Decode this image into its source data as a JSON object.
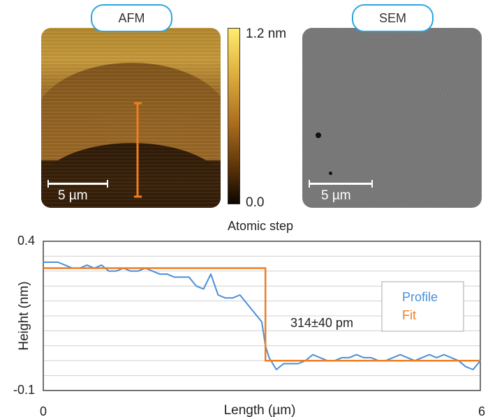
{
  "images": {
    "afm": {
      "label": "AFM",
      "scale_label": "5 µm"
    },
    "sem": {
      "label": "SEM",
      "scale_label": "5 µm"
    }
  },
  "colorbar": {
    "max_label": "1.2 nm",
    "min_label": "0.0"
  },
  "colors": {
    "profile": "#4a8fd8",
    "fit": "#ef7d22",
    "pill_border": "#2ba6de",
    "afm_line": "#ef7d22"
  },
  "chart_data": {
    "type": "line",
    "title": "Atomic step",
    "xlabel": "Length (µm)",
    "ylabel": "Height (nm)",
    "xlim": [
      0,
      6
    ],
    "ylim": [
      -0.1,
      0.4
    ],
    "x_tick_labels": [
      "0",
      "6"
    ],
    "y_tick_labels": [
      "0.4",
      "-0.1"
    ],
    "grid": true,
    "legend_position": "right",
    "annotation": "314±40 pm",
    "series": [
      {
        "name": "Profile",
        "x": [
          0,
          0.1,
          0.2,
          0.3,
          0.4,
          0.5,
          0.6,
          0.7,
          0.8,
          0.9,
          1.0,
          1.1,
          1.2,
          1.3,
          1.4,
          1.5,
          1.6,
          1.7,
          1.8,
          1.9,
          2.0,
          2.1,
          2.2,
          2.3,
          2.4,
          2.5,
          2.6,
          2.7,
          2.8,
          2.9,
          3.0,
          3.05,
          3.1,
          3.2,
          3.3,
          3.4,
          3.5,
          3.6,
          3.7,
          3.8,
          3.9,
          4.0,
          4.1,
          4.2,
          4.3,
          4.4,
          4.5,
          4.6,
          4.7,
          4.8,
          4.9,
          5.0,
          5.1,
          5.2,
          5.3,
          5.4,
          5.5,
          5.6,
          5.7,
          5.8,
          5.9,
          6.0
        ],
        "y": [
          0.33,
          0.33,
          0.33,
          0.32,
          0.31,
          0.31,
          0.32,
          0.31,
          0.32,
          0.3,
          0.3,
          0.31,
          0.3,
          0.3,
          0.31,
          0.3,
          0.29,
          0.29,
          0.28,
          0.28,
          0.28,
          0.25,
          0.24,
          0.29,
          0.22,
          0.21,
          0.21,
          0.22,
          0.19,
          0.16,
          0.13,
          0.05,
          0.01,
          -0.03,
          -0.01,
          -0.01,
          -0.01,
          0.0,
          0.02,
          0.01,
          0.0,
          0.0,
          0.01,
          0.01,
          0.02,
          0.01,
          0.01,
          0.0,
          0.0,
          0.01,
          0.02,
          0.01,
          0.0,
          0.01,
          0.02,
          0.01,
          0.02,
          0.01,
          0.0,
          -0.02,
          -0.03,
          0.0
        ]
      },
      {
        "name": "Fit",
        "x": [
          0,
          3.05,
          3.05,
          6.0
        ],
        "y": [
          0.31,
          0.31,
          0.0,
          0.0
        ]
      }
    ]
  }
}
